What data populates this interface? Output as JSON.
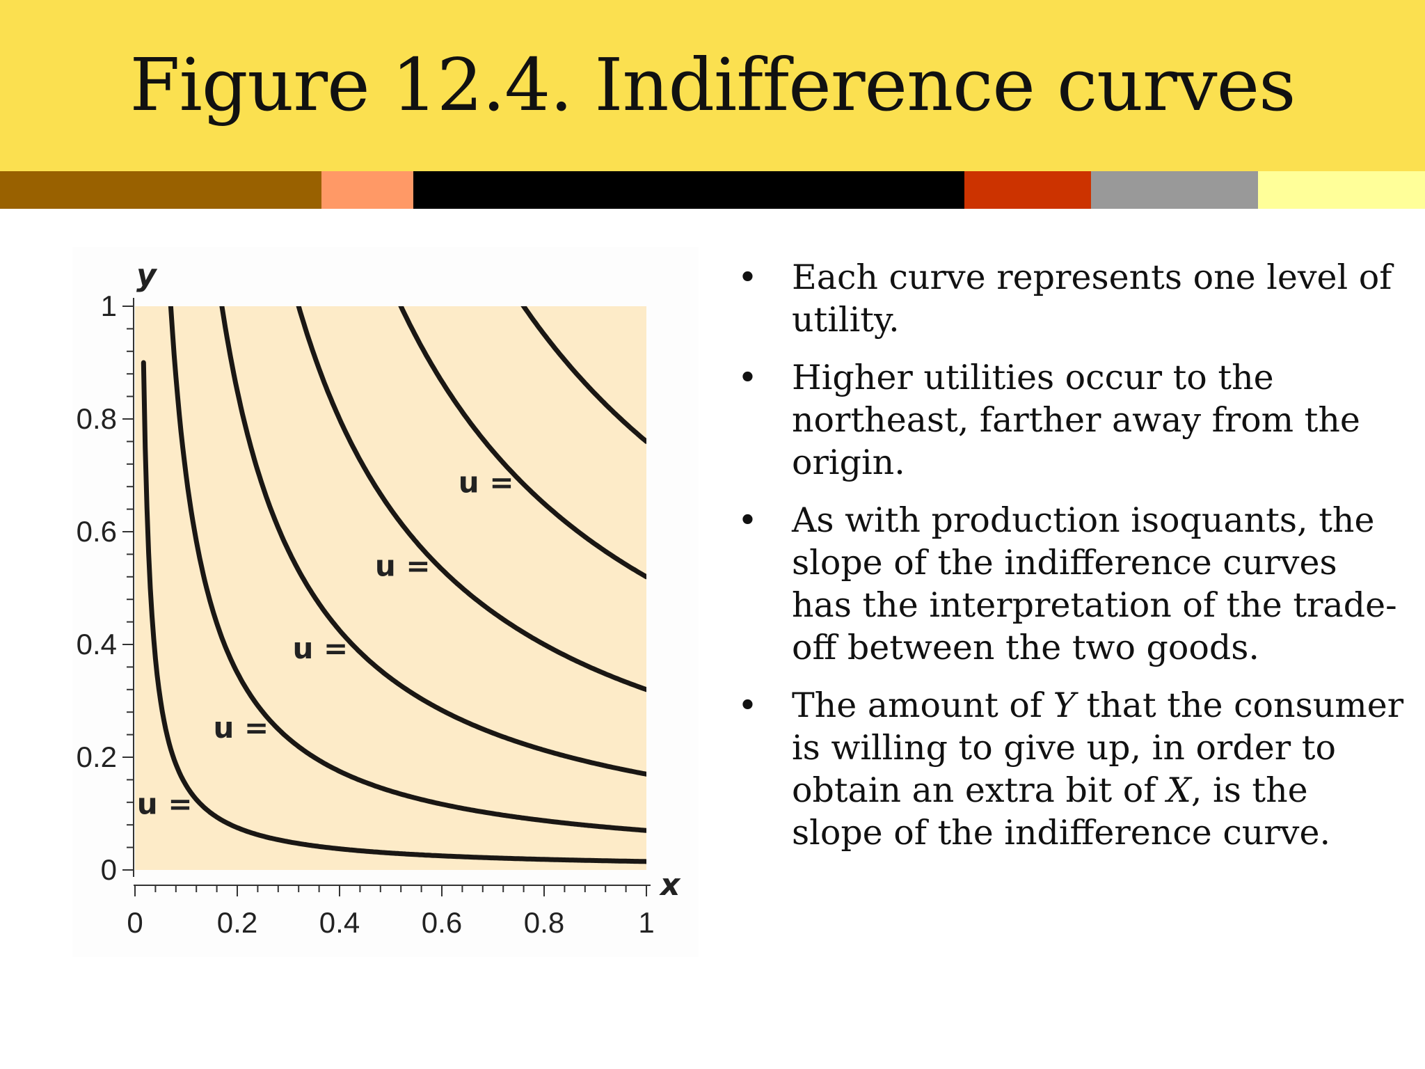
{
  "slide": {
    "title": "Figure 12.4. Indifference curves"
  },
  "stripes": [
    {
      "color": "#996100"
    },
    {
      "color": "#ff9966"
    },
    {
      "color": "#000000"
    },
    {
      "color": "#cc3300"
    },
    {
      "color": "#999999"
    },
    {
      "color": "#ffff99"
    }
  ],
  "bullets": [
    {
      "segments": [
        {
          "text": "Each curve represents one level of utility."
        }
      ]
    },
    {
      "segments": [
        {
          "text": "Higher utilities occur to the northeast, farther away from the origin."
        }
      ]
    },
    {
      "segments": [
        {
          "text": "As with production isoquants, the slope of the indifference curves has the interpretation of the trade-off between the two goods."
        }
      ]
    },
    {
      "segments": [
        {
          "text": "The amount of "
        },
        {
          "text": "Y",
          "italic": true
        },
        {
          "text": " that the consumer is willing to give up, in order to obtain an extra bit of "
        },
        {
          "text": "X",
          "italic": true
        },
        {
          "text": ", is the slope of the indifference curve."
        }
      ]
    }
  ],
  "bullet_symbol": "•",
  "chart_data": {
    "type": "line",
    "xlabel": "x",
    "ylabel": "y",
    "xlim": [
      0,
      1
    ],
    "ylim": [
      0,
      1
    ],
    "x_ticks": [
      "0",
      "0.2",
      "0.4",
      "0.6",
      "0.8",
      "1"
    ],
    "y_ticks": [
      "0",
      "0.2",
      "0.4",
      "0.6",
      "0.8",
      "1"
    ],
    "y_tick_values": [
      0,
      0.2,
      0.4,
      0.6,
      0.8,
      1
    ],
    "x_tick_values": [
      0,
      0.2,
      0.4,
      0.6,
      0.8,
      1
    ],
    "plot_background": "#fdebc8",
    "line_color": "#1a1714",
    "series": [
      {
        "label": "u =",
        "k": 0.015
      },
      {
        "label": "u =",
        "k": 0.07
      },
      {
        "label": "u =",
        "k": 0.17
      },
      {
        "label": "u =",
        "k": 0.32
      },
      {
        "label": "u =",
        "k": 0.52
      },
      {
        "k": 0.76
      }
    ]
  }
}
